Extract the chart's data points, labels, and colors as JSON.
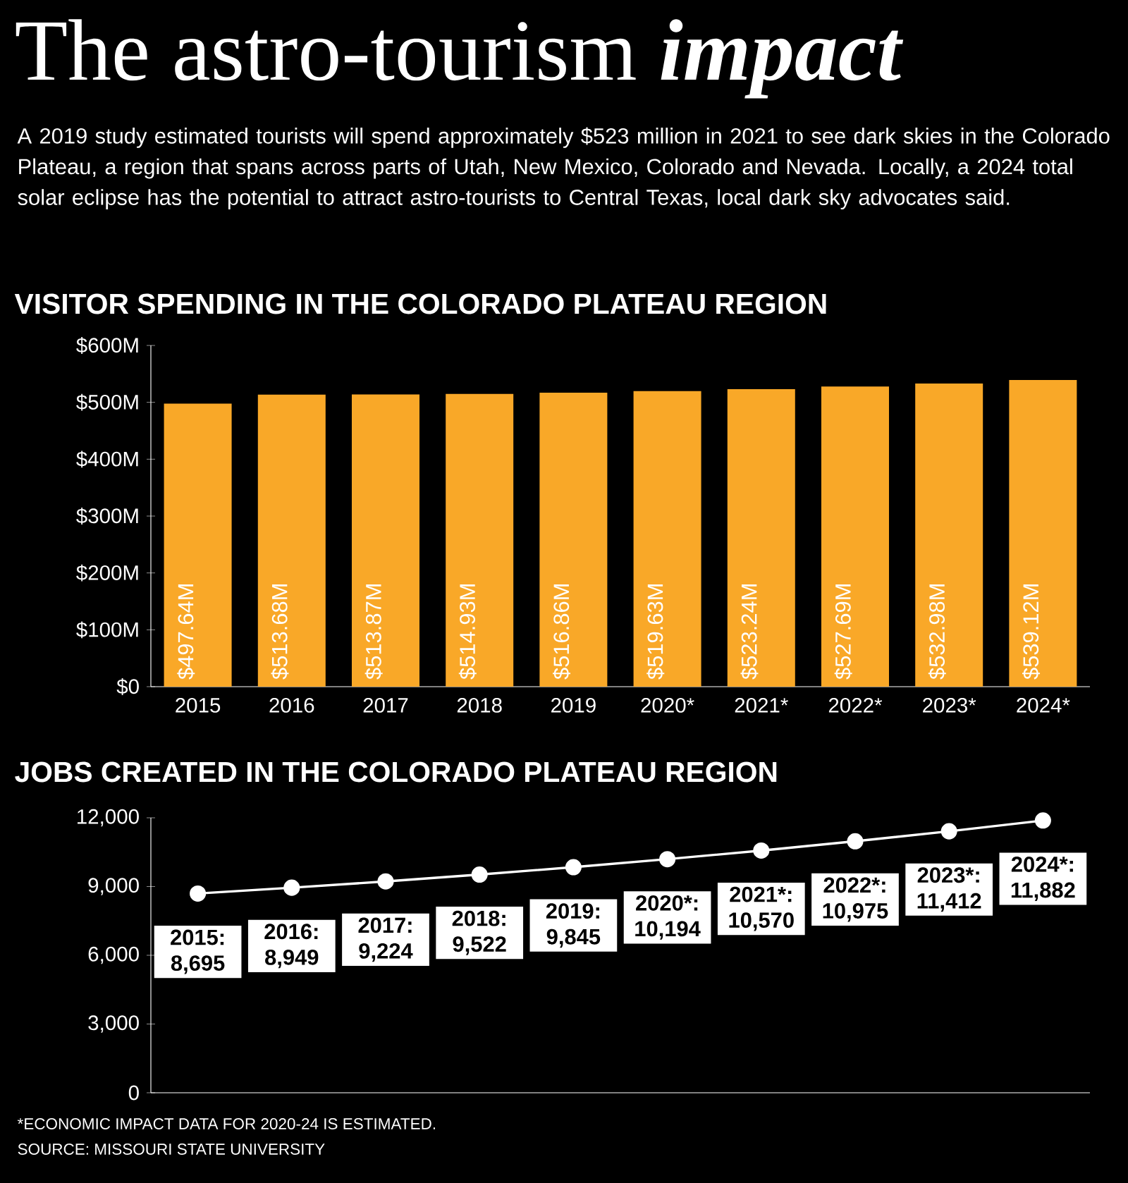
{
  "chart_data": [
    {
      "type": "other",
      "title": "The astro-tourism **impact**",
      "subtitle": "A 2019 study estimated tourists will spend approximately $523 million in 2021 to see dark skies in the Colorado Plateau, a region that spans across parts of Utah, New Mexico, Colorado and Nevada. Locally, a 2024 total solar eclipse has the potential to attract astro-tourists to Central Texas, local dark sky advocates said."
    },
    {
      "type": "bar",
      "title": "VISITOR SPENDING IN THE COLORADO PLATEAU REGION",
      "categories": [
        "2015",
        "2016",
        "2017",
        "2018",
        "2019",
        "2020*",
        "2021*",
        "2022*",
        "2023*",
        "2024*"
      ],
      "values": [
        497.64,
        513.68,
        513.87,
        514.93,
        516.86,
        519.63,
        523.24,
        527.69,
        532.98,
        539.12
      ],
      "value_labels": [
        "$497.64M",
        "$513.68M",
        "$513.87M",
        "$514.93M",
        "$516.86M",
        "$519.63M",
        "$523.24M",
        "$527.69M",
        "$532.98M",
        "$539.12M"
      ],
      "color": "#f9a828",
      "ylim": [
        0,
        600
      ],
      "yticks": [
        {
          "value": 0,
          "label": "$0"
        },
        {
          "value": 100,
          "label": "$100M"
        },
        {
          "value": 200,
          "label": "$200M"
        },
        {
          "value": 300,
          "label": "$300M"
        },
        {
          "value": 400,
          "label": "$400M"
        },
        {
          "value": 500,
          "label": "$500M"
        },
        {
          "value": 600,
          "label": "$600M"
        }
      ]
    },
    {
      "type": "line",
      "title": "JOBS CREATED IN THE COLORADO PLATEAU REGION",
      "categories": [
        null,
        null,
        null,
        null,
        null,
        null,
        null,
        null,
        null,
        null
      ],
      "values": [
        8695,
        8949,
        9224,
        9522,
        9845,
        10194,
        10570,
        10975,
        11412,
        11882
      ],
      "value_labels": [
        "2015: 8,695",
        "2016: 8,949",
        "2017: 9,224",
        "2018: 9,522",
        "2019: 9,845",
        "2020*: 10,194",
        "2021*: 10,570",
        "2022*: 10,975",
        "2023*: 11,412",
        "2024*: 11,882"
      ],
      "color": "#ffffff",
      "marker": "circle",
      "tick_labels": "y",
      "ylim": [
        0,
        12000
      ],
      "yticks": [
        0,
        {
          "value": 3000,
          "label": "3,000"
        },
        {
          "value": 6000,
          "label": "6,000"
        },
        {
          "value": 9000,
          "label": "9,000"
        },
        {
          "value": 12000,
          "label": "12,000"
        }
      ],
      "annotations": [
        "*ECONOMIC IMPACT DATA FOR 2020-24 IS ESTIMATED.",
        "SOURCE: MISSOURI STATE UNIVERSITY"
      ]
    }
  ]
}
